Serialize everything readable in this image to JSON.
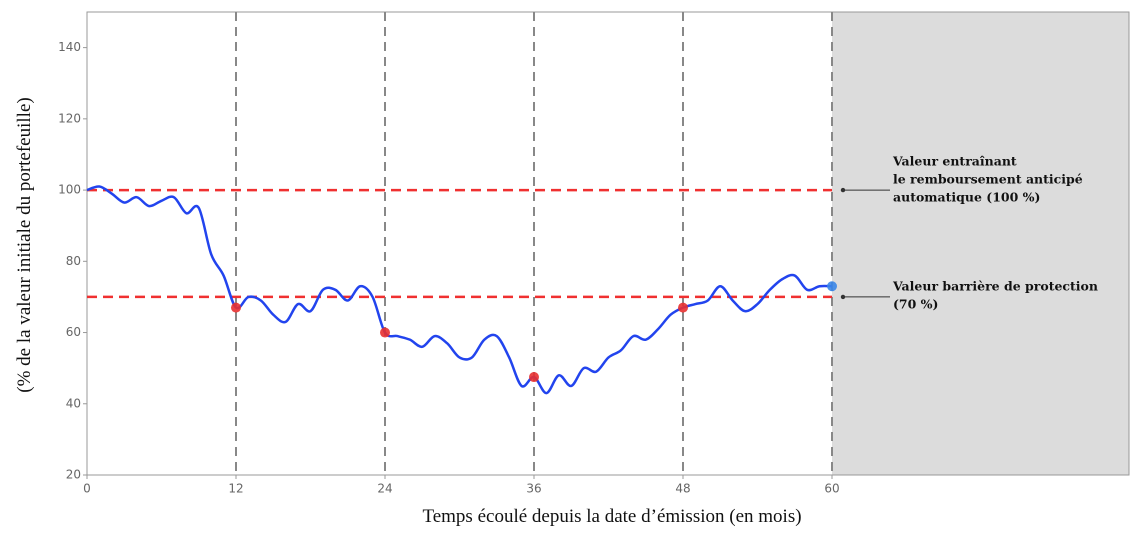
{
  "chart_data": {
    "type": "line",
    "x_label": "Temps écoulé depuis la date d’émission (en mois)",
    "y_label": "(% de la valeur initiale du portefeuille)",
    "xlim": [
      0,
      60
    ],
    "ylim": [
      20,
      150
    ],
    "xticks": [
      0,
      12,
      24,
      36,
      48,
      60
    ],
    "yticks": [
      20,
      40,
      60,
      80,
      100,
      120,
      140
    ],
    "grid": "vertical",
    "series": [
      {
        "color": "#2244ee",
        "x": [
          0,
          1,
          2,
          3,
          4,
          5,
          6,
          7,
          8,
          9,
          10,
          11,
          12,
          13,
          14,
          15,
          16,
          17,
          18,
          19,
          20,
          21,
          22,
          23,
          24,
          25,
          26,
          27,
          28,
          29,
          30,
          31,
          32,
          33,
          34,
          35,
          36,
          37,
          38,
          39,
          40,
          41,
          42,
          43,
          44,
          45,
          46,
          47,
          48,
          49,
          50,
          51,
          52,
          53,
          54,
          55,
          56,
          57,
          58,
          59,
          60
        ],
        "values": [
          100,
          101,
          99,
          96.5,
          98,
          95.5,
          97,
          98,
          93.5,
          95,
          82,
          76,
          67,
          70,
          69,
          65,
          63,
          68,
          66,
          72,
          72,
          69,
          73,
          70,
          60,
          59,
          58,
          56,
          59,
          57,
          53,
          53,
          58,
          59,
          53,
          45,
          47.5,
          43,
          48,
          45,
          50,
          49,
          53,
          55,
          59,
          58,
          61,
          65,
          67,
          68,
          69,
          73,
          69,
          66,
          68,
          72,
          75,
          76,
          72,
          73,
          73
        ]
      }
    ],
    "markers": [
      {
        "color": "#e83030",
        "x": [
          12,
          24,
          36,
          48
        ],
        "values": [
          67,
          60,
          47.5,
          67
        ]
      },
      {
        "color": "#3a86e8",
        "x": [
          60
        ],
        "values": [
          73
        ]
      }
    ],
    "reference_lines": [
      {
        "value": 100,
        "color": "#f03030",
        "label": [
          "Valeur entraînant",
          "le remboursement anticipé",
          "automatique (100 %)"
        ]
      },
      {
        "value": 70,
        "color": "#f03030",
        "label": [
          "Valeur barrière de protection",
          "(70 %)"
        ]
      }
    ]
  }
}
